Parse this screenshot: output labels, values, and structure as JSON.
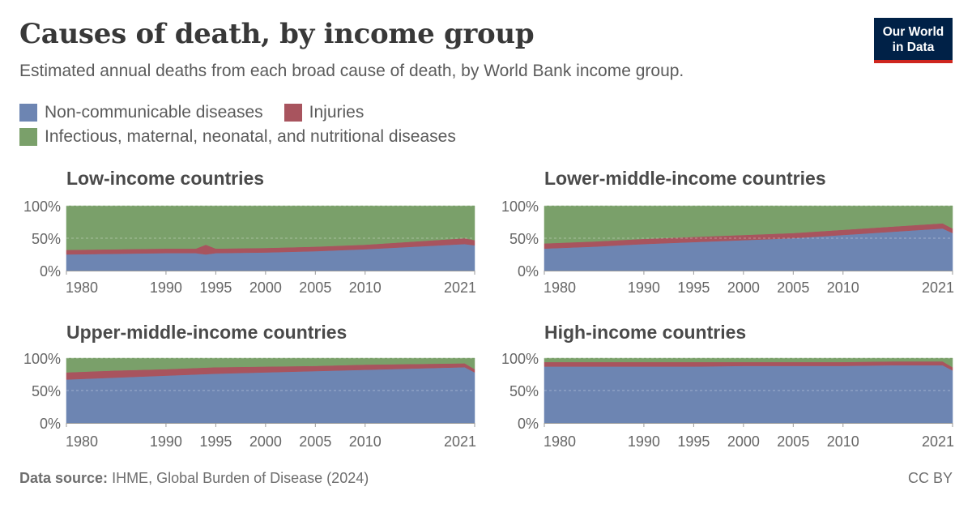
{
  "header": {
    "title": "Causes of death, by income group",
    "subtitle": "Estimated annual deaths from each broad cause of death, by World Bank income group.",
    "logo_line1": "Our World",
    "logo_line2": "in Data"
  },
  "legend": [
    {
      "name": "Non-communicable diseases",
      "color": "#6d85b2"
    },
    {
      "name": "Injuries",
      "color": "#a8545e"
    },
    {
      "name": "Infectious, maternal, neonatal, and nutritional diseases",
      "color": "#7aa06a"
    }
  ],
  "footer": {
    "source_label": "Data source:",
    "source_text": "IHME, Global Burden of Disease (2024)",
    "license": "CC BY"
  },
  "chart_data": [
    {
      "type": "area",
      "stacked": "percent",
      "title": "Low-income countries",
      "x": [
        1980,
        1985,
        1990,
        1992,
        1993,
        1994,
        1995,
        2000,
        2005,
        2010,
        2015,
        2020,
        2021
      ],
      "x_ticks": [
        "1980",
        "1990",
        "1995",
        "2000",
        "2005",
        "2010",
        "2021"
      ],
      "y_ticks": [
        "0%",
        "50%",
        "100%"
      ],
      "ylim": [
        0,
        100
      ],
      "series": [
        {
          "name": "Non-communicable diseases",
          "values": [
            25,
            26,
            27,
            27,
            27,
            25,
            27,
            28,
            30,
            33,
            37,
            41,
            39
          ]
        },
        {
          "name": "Injuries",
          "values": [
            7,
            7,
            7,
            7,
            7,
            15,
            7,
            7,
            7,
            7,
            8,
            9,
            8
          ]
        },
        {
          "name": "Infectious, maternal, neonatal, and nutritional diseases",
          "values": [
            68,
            67,
            66,
            66,
            66,
            60,
            66,
            65,
            63,
            60,
            55,
            50,
            53
          ]
        }
      ]
    },
    {
      "type": "area",
      "stacked": "percent",
      "title": "Lower-middle-income countries",
      "x": [
        1980,
        1985,
        1990,
        1995,
        2000,
        2005,
        2010,
        2015,
        2020,
        2021
      ],
      "x_ticks": [
        "1980",
        "1990",
        "1995",
        "2000",
        "2005",
        "2010",
        "2021"
      ],
      "y_ticks": [
        "0%",
        "50%",
        "100%"
      ],
      "ylim": [
        0,
        100
      ],
      "series": [
        {
          "name": "Non-communicable diseases",
          "values": [
            34,
            37,
            41,
            44,
            47,
            50,
            55,
            60,
            65,
            58
          ]
        },
        {
          "name": "Injuries",
          "values": [
            8,
            8,
            8,
            8,
            8,
            8,
            8,
            8,
            8,
            7
          ]
        },
        {
          "name": "Infectious, maternal, neonatal, and nutritional diseases",
          "values": [
            58,
            55,
            51,
            48,
            45,
            42,
            37,
            32,
            27,
            35
          ]
        }
      ]
    },
    {
      "type": "area",
      "stacked": "percent",
      "title": "Upper-middle-income countries",
      "x": [
        1980,
        1985,
        1990,
        1995,
        2000,
        2005,
        2010,
        2015,
        2020,
        2021
      ],
      "x_ticks": [
        "1980",
        "1990",
        "1995",
        "2000",
        "2005",
        "2010",
        "2021"
      ],
      "y_ticks": [
        "0%",
        "50%",
        "100%"
      ],
      "ylim": [
        0,
        100
      ],
      "series": [
        {
          "name": "Non-communicable diseases",
          "values": [
            67,
            70,
            73,
            76,
            78,
            80,
            82,
            84,
            86,
            78
          ]
        },
        {
          "name": "Injuries",
          "values": [
            11,
            11,
            10,
            10,
            9,
            8,
            8,
            7,
            6,
            5
          ]
        },
        {
          "name": "Infectious, maternal, neonatal, and nutritional diseases",
          "values": [
            22,
            19,
            17,
            14,
            13,
            12,
            10,
            9,
            8,
            17
          ]
        }
      ]
    },
    {
      "type": "area",
      "stacked": "percent",
      "title": "High-income countries",
      "x": [
        1980,
        1985,
        1990,
        1995,
        2000,
        2005,
        2010,
        2015,
        2020,
        2021
      ],
      "x_ticks": [
        "1980",
        "1990",
        "1995",
        "2000",
        "2005",
        "2010",
        "2021"
      ],
      "y_ticks": [
        "0%",
        "50%",
        "100%"
      ],
      "ylim": [
        0,
        100
      ],
      "series": [
        {
          "name": "Non-communicable diseases",
          "values": [
            87,
            87,
            87,
            87,
            88,
            88,
            88,
            89,
            89,
            81
          ]
        },
        {
          "name": "Injuries",
          "values": [
            7,
            7,
            7,
            7,
            6,
            6,
            6,
            6,
            6,
            5
          ]
        },
        {
          "name": "Infectious, maternal, neonatal, and nutritional diseases",
          "values": [
            6,
            6,
            6,
            6,
            6,
            6,
            6,
            5,
            5,
            14
          ]
        }
      ]
    }
  ]
}
